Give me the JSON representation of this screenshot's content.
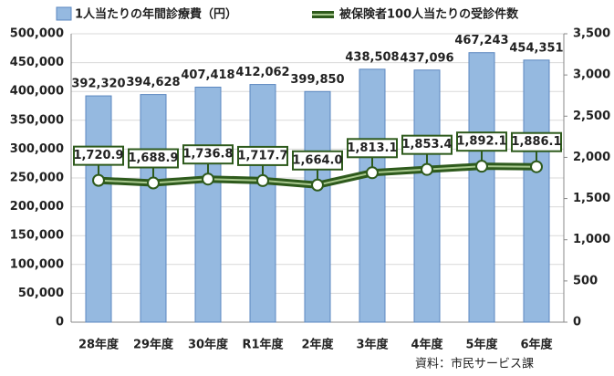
{
  "chart_data": {
    "type": "bar",
    "categories": [
      "28年度",
      "29年度",
      "30年度",
      "R1年度",
      "2年度",
      "3年度",
      "4年度",
      "5年度",
      "6年度"
    ],
    "series": [
      {
        "name": "1人当たりの年間診療費（円）",
        "type": "bar",
        "color": "#95b9e0",
        "values": [
          392320,
          394628,
          407418,
          412062,
          399850,
          438508,
          437096,
          467243,
          454351
        ],
        "value_labels": [
          "392,320",
          "394,628",
          "407,418",
          "412,062",
          "399,850",
          "438,508",
          "437,096",
          "467,243",
          "454,351"
        ]
      },
      {
        "name": "被保険者100人当たりの受診件数",
        "type": "line",
        "axis": "y2",
        "color": "#2e5a1c",
        "values": [
          1720.9,
          1688.9,
          1736.8,
          1717.7,
          1664.0,
          1813.1,
          1853.4,
          1892.1,
          1886.1
        ],
        "value_labels": [
          "1,720.9",
          "1,688.9",
          "1,736.8",
          "1,717.7",
          "1,664.0",
          "1,813.1",
          "1,853.4",
          "1,892.1",
          "1,886.1"
        ]
      }
    ],
    "ylim": [
      0,
      500000
    ],
    "yticks": [
      0,
      {
        "value": 50000,
        "label": "50,000"
      },
      {
        "value": 100000,
        "label": "100,000"
      },
      {
        "value": 150000,
        "label": "150,000"
      },
      {
        "value": 200000,
        "label": "200,000"
      },
      {
        "value": 250000,
        "label": "250,000"
      },
      {
        "value": 300000,
        "label": "300,000"
      },
      {
        "value": 350000,
        "label": "350,000"
      },
      {
        "value": 400000,
        "label": "400,000"
      },
      {
        "value": 450000,
        "label": "450,000"
      },
      {
        "value": 500000,
        "label": "500,000"
      }
    ],
    "y2lim": [
      0,
      3500
    ],
    "y2ticks": [
      0,
      500,
      {
        "value": 1000,
        "label": "1,000"
      },
      {
        "value": 1500,
        "label": "1,500"
      },
      {
        "value": 2000,
        "label": "2,000"
      },
      {
        "value": 2500,
        "label": "2,500"
      },
      {
        "value": 3000,
        "label": "3,000"
      },
      {
        "value": 3500,
        "label": "3,500"
      }
    ],
    "grid": true,
    "annotation": "資料：市民サービス課"
  }
}
